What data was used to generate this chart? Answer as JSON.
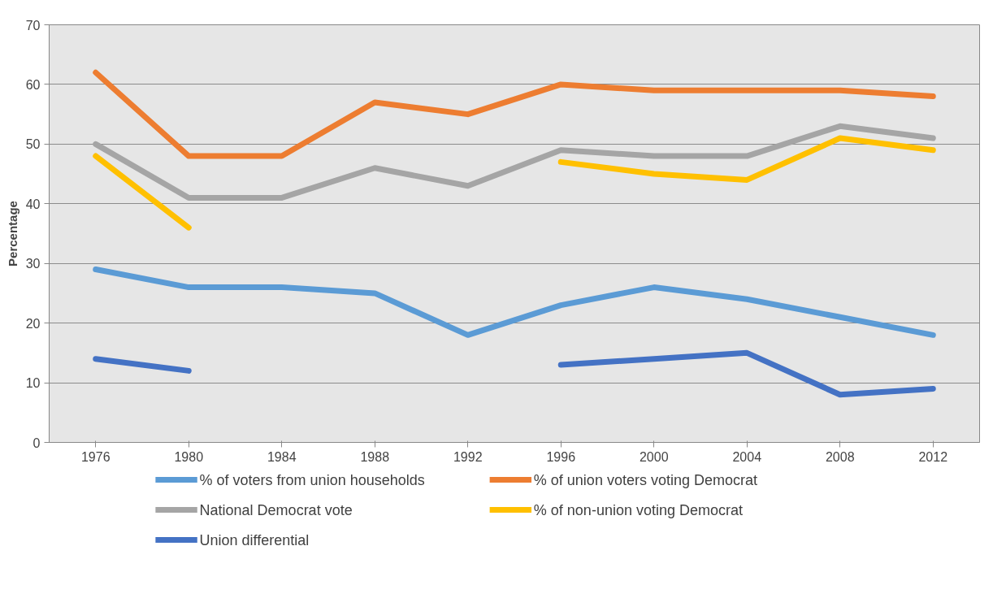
{
  "chart_data": {
    "type": "line",
    "ylabel": "Percentage",
    "categories": [
      "1976",
      "1980",
      "1984",
      "1988",
      "1992",
      "1996",
      "2000",
      "2004",
      "2008",
      "2012"
    ],
    "ylim": [
      0,
      70
    ],
    "yticks": [
      0,
      10,
      20,
      30,
      40,
      50,
      60,
      70
    ],
    "grid": "y",
    "legend": "bottom",
    "line_style": "solid",
    "series": [
      {
        "name": "% of voters from union households",
        "color": "#5b9bd5",
        "values": [
          29,
          26,
          26,
          25,
          18,
          23,
          26,
          24,
          21,
          18
        ]
      },
      {
        "name": "% of union voters voting Democrat",
        "color": "#ed7d31",
        "values": [
          62,
          48,
          48,
          57,
          55,
          60,
          59,
          59,
          59,
          58
        ]
      },
      {
        "name": "National Democrat vote",
        "color": "#a5a5a5",
        "values": [
          50,
          41,
          41,
          46,
          43,
          49,
          48,
          48,
          53,
          51
        ]
      },
      {
        "name": "% of non-union voting Democrat",
        "color": "#ffc000",
        "values": [
          48,
          36,
          null,
          null,
          null,
          47,
          45,
          44,
          51,
          49
        ]
      },
      {
        "name": "Union differential",
        "color": "#4472c4",
        "values": [
          14,
          12,
          null,
          null,
          null,
          13,
          14,
          15,
          8,
          9
        ]
      }
    ]
  }
}
